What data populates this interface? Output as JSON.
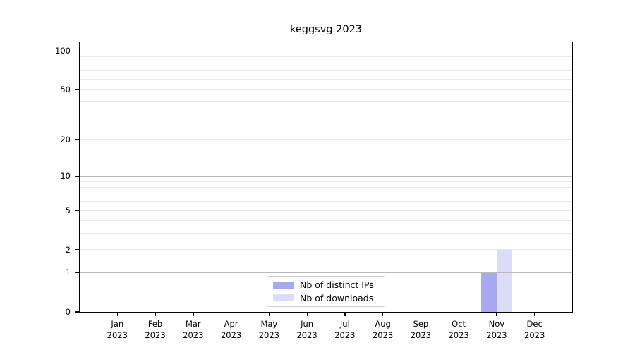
{
  "chart_data": {
    "type": "bar",
    "title": "keggsvg 2023",
    "categories": [
      {
        "month": "Jan",
        "year": "2023"
      },
      {
        "month": "Feb",
        "year": "2023"
      },
      {
        "month": "Mar",
        "year": "2023"
      },
      {
        "month": "Apr",
        "year": "2023"
      },
      {
        "month": "May",
        "year": "2023"
      },
      {
        "month": "Jun",
        "year": "2023"
      },
      {
        "month": "Jul",
        "year": "2023"
      },
      {
        "month": "Aug",
        "year": "2023"
      },
      {
        "month": "Sep",
        "year": "2023"
      },
      {
        "month": "Oct",
        "year": "2023"
      },
      {
        "month": "Nov",
        "year": "2023"
      },
      {
        "month": "Dec",
        "year": "2023"
      }
    ],
    "series": [
      {
        "name": "Nb of distinct IPs",
        "color": "#a8a8f0",
        "values": [
          0,
          0,
          0,
          0,
          0,
          0,
          0,
          0,
          0,
          0,
          1,
          0
        ]
      },
      {
        "name": "Nb of downloads",
        "color": "#dcdcf7",
        "values": [
          0,
          0,
          0,
          0,
          0,
          0,
          0,
          0,
          0,
          0,
          2,
          0
        ]
      }
    ],
    "yscale": "log1p",
    "ylim": [
      0,
      115.5
    ],
    "y_tick_labels": [
      100,
      50,
      20,
      10,
      5,
      2,
      1,
      0
    ],
    "y_major_gridlines": [
      1,
      10,
      100
    ],
    "y_minor_gridlines": [
      2,
      3,
      4,
      5,
      6,
      7,
      8,
      9,
      20,
      30,
      40,
      50,
      60,
      70,
      80,
      90
    ],
    "legend": {
      "position": "lower center"
    },
    "colors": {
      "major_grid": "#b9b9b9",
      "minor_grid": "#e8e8e8",
      "spine": "#000000",
      "background": "#ffffff"
    }
  }
}
